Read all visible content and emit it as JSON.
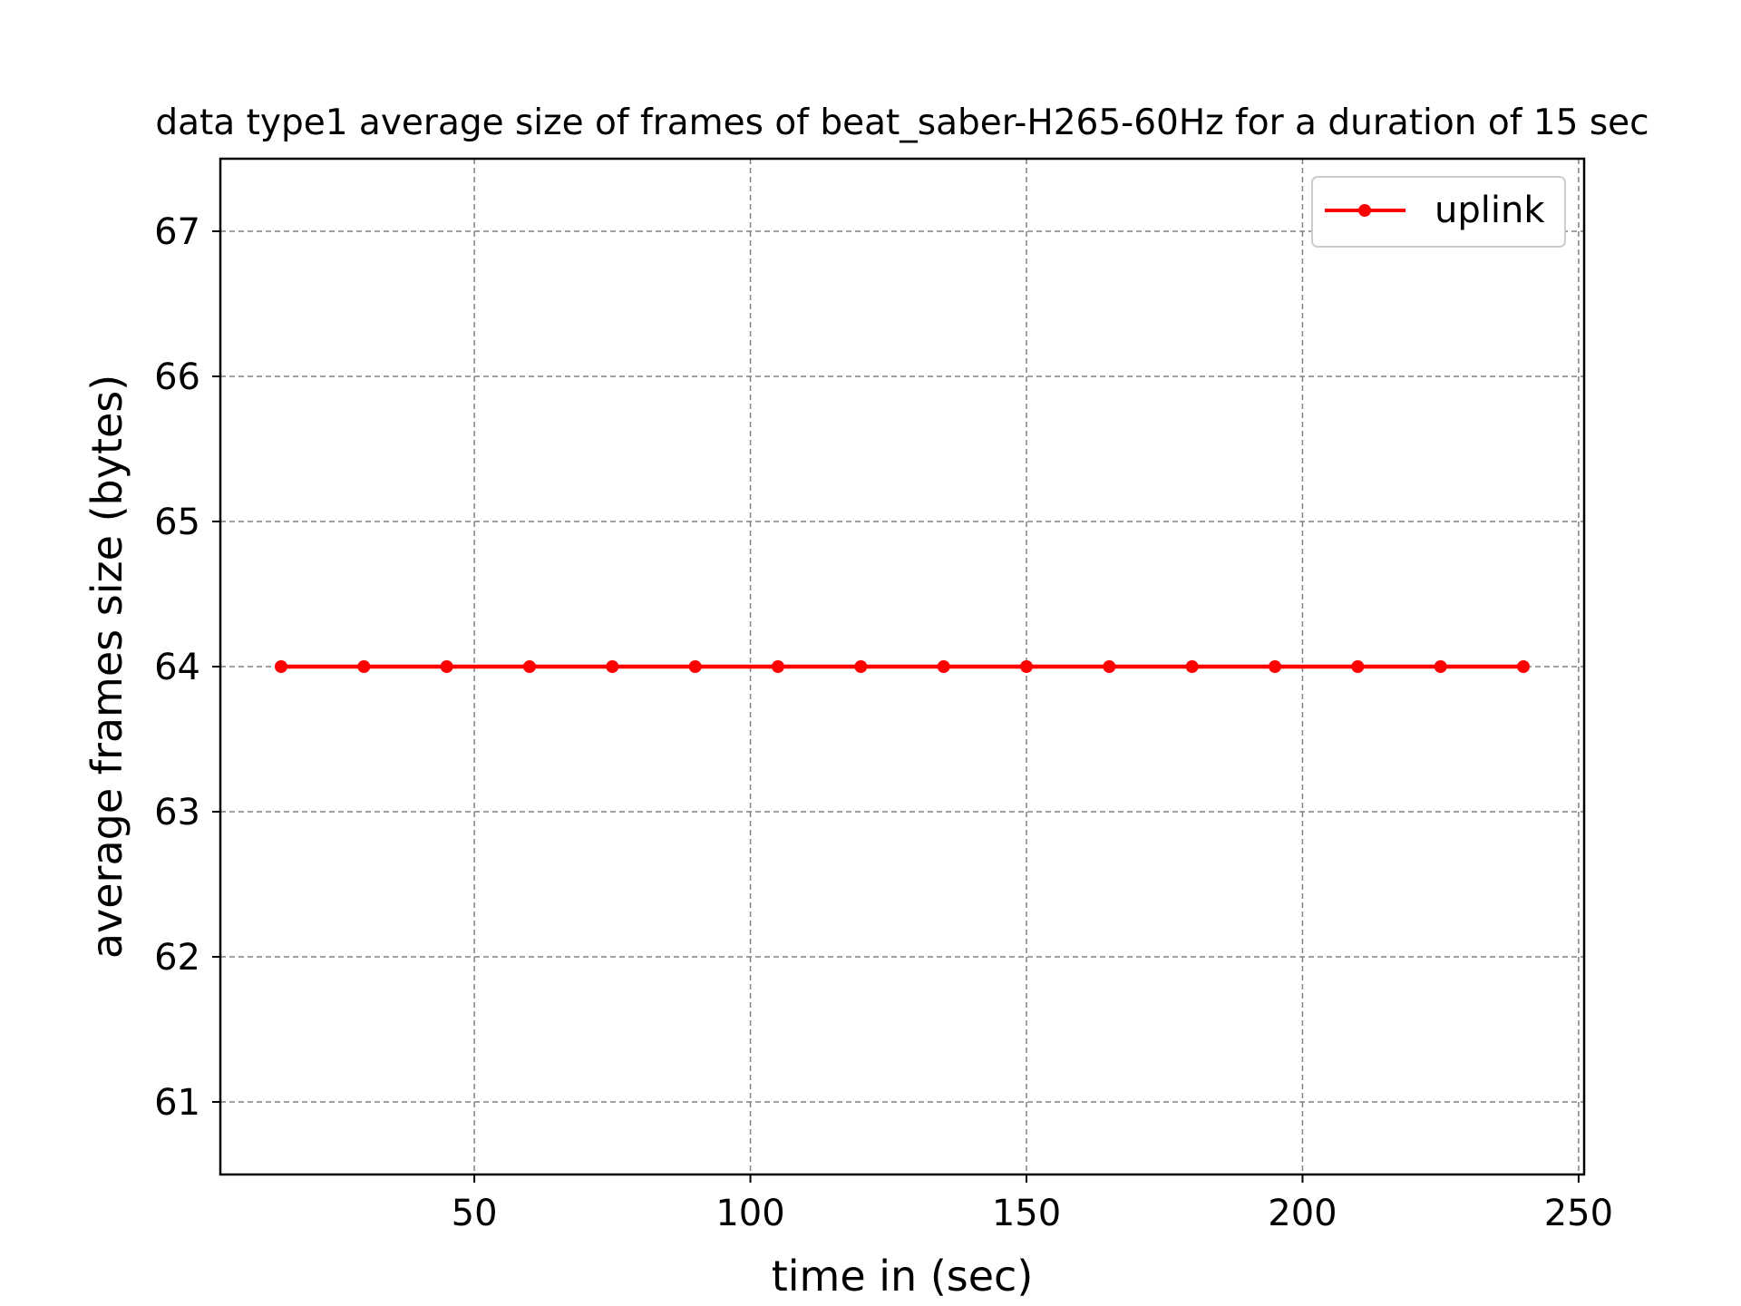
{
  "chart_data": {
    "type": "line",
    "title": "data type1 average size of frames of beat_saber-H265-60Hz for a duration of 15 sec",
    "xlabel": "time in (sec)",
    "ylabel": "average frames size (bytes)",
    "xlim": [
      4,
      251
    ],
    "ylim": [
      60.5,
      67.5
    ],
    "xticks": [
      50,
      100,
      150,
      200,
      250
    ],
    "yticks": [
      61,
      62,
      63,
      64,
      65,
      66,
      67
    ],
    "grid": true,
    "legend_position": "top-right",
    "series": [
      {
        "name": "uplink",
        "color": "#ff0000",
        "marker": "circle",
        "x": [
          15,
          30,
          45,
          60,
          75,
          90,
          105,
          120,
          135,
          150,
          165,
          180,
          195,
          210,
          225,
          240
        ],
        "y": [
          64,
          64,
          64,
          64,
          64,
          64,
          64,
          64,
          64,
          64,
          64,
          64,
          64,
          64,
          64,
          64
        ]
      }
    ]
  }
}
